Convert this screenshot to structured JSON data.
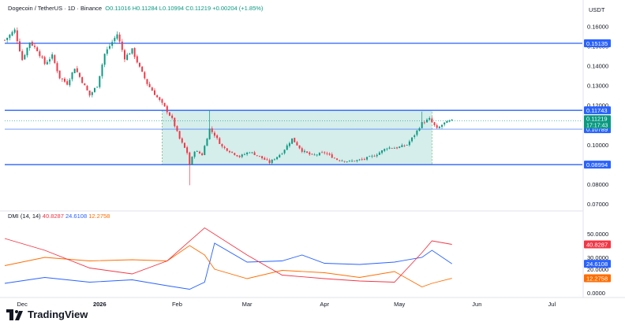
{
  "header": {
    "symbol": "Dogecoin / TetherUS · 1D · Binance",
    "ohlc": "O0.11016  H0.11284  L0.10994  C0.11219  +0.00204 (+1.85%)"
  },
  "currency": "USDT",
  "indicator": {
    "name": "DMI (14, 14)",
    "v1": "40.8287",
    "v2": "24.6108",
    "v3": "12.2758"
  },
  "brand": "TradingView",
  "colors": {
    "up": "#089981",
    "down": "#f23645",
    "level": "#2962ff",
    "range_fill": "#b2dfdb",
    "dmi_adx": "#f23645",
    "dmi_plus": "#2962ff",
    "dmi_minus": "#ff6d00",
    "price_tag": "#089981"
  },
  "chart_data": [
    {
      "type": "candlestick",
      "title": "Dogecoin / TetherUS · 1D · Binance",
      "y_ticks": [
        "0.16000",
        "0.15000",
        "0.14000",
        "0.13000",
        "0.12000",
        "0.11000",
        "0.10000",
        "0.09000",
        "0.08000",
        "0.07000"
      ],
      "ylim": [
        0.0665,
        0.1665
      ],
      "x_ticks": [
        "Dec",
        "2026",
        "Feb",
        "Mar",
        "Apr",
        "May",
        "Jun",
        "Jul"
      ],
      "levels": [
        {
          "price": 0.15135,
          "label": "0.15135"
        },
        {
          "price": 0.11743,
          "label": "0.11743"
        },
        {
          "price": 0.10789,
          "label": "0.10789"
        },
        {
          "price": 0.08994,
          "label": "0.08994"
        }
      ],
      "current_price": {
        "price": 0.11219,
        "label": "0.11219",
        "countdown": "17:17:43"
      },
      "range_box": {
        "from": "2026-01-26",
        "to": "2026-05-14",
        "top": 0.11743,
        "bottom": 0.08994
      },
      "series_anchors": [
        [
          "2025-11-24",
          0.153
        ],
        [
          "2025-11-28",
          0.158
        ],
        [
          "2025-12-01",
          0.143
        ],
        [
          "2025-12-04",
          0.152
        ],
        [
          "2025-12-07",
          0.148
        ],
        [
          "2025-12-10",
          0.141
        ],
        [
          "2025-12-13",
          0.145
        ],
        [
          "2025-12-16",
          0.134
        ],
        [
          "2025-12-19",
          0.131
        ],
        [
          "2025-12-22",
          0.139
        ],
        [
          "2025-12-25",
          0.132
        ],
        [
          "2025-12-28",
          0.125
        ],
        [
          "2025-12-31",
          0.13
        ],
        [
          "2026-01-03",
          0.146
        ],
        [
          "2026-01-06",
          0.152
        ],
        [
          "2026-01-08",
          0.156
        ],
        [
          "2026-01-11",
          0.144
        ],
        [
          "2026-01-14",
          0.148
        ],
        [
          "2026-01-17",
          0.139
        ],
        [
          "2026-01-20",
          0.131
        ],
        [
          "2026-01-24",
          0.124
        ],
        [
          "2026-01-27",
          0.119
        ],
        [
          "2026-01-30",
          0.113
        ],
        [
          "2026-02-02",
          0.103
        ],
        [
          "2026-02-05",
          0.096
        ],
        [
          "2026-02-06",
          0.09
        ],
        [
          "2026-02-08",
          0.097
        ],
        [
          "2026-02-11",
          0.095
        ],
        [
          "2026-02-14",
          0.108
        ],
        [
          "2026-02-16",
          0.105
        ],
        [
          "2026-02-19",
          0.099
        ],
        [
          "2026-02-23",
          0.096
        ],
        [
          "2026-02-26",
          0.094
        ],
        [
          "2026-03-02",
          0.0965
        ],
        [
          "2026-03-06",
          0.094
        ],
        [
          "2026-03-10",
          0.091
        ],
        [
          "2026-03-15",
          0.096
        ],
        [
          "2026-03-19",
          0.103
        ],
        [
          "2026-03-23",
          0.097
        ],
        [
          "2026-03-27",
          0.0945
        ],
        [
          "2026-04-01",
          0.096
        ],
        [
          "2026-04-06",
          0.0925
        ],
        [
          "2026-04-11",
          0.0915
        ],
        [
          "2026-04-16",
          0.0925
        ],
        [
          "2026-04-21",
          0.0945
        ],
        [
          "2026-04-26",
          0.0985
        ],
        [
          "2026-04-30",
          0.0985
        ],
        [
          "2026-05-04",
          0.1
        ],
        [
          "2026-05-07",
          0.105
        ],
        [
          "2026-05-10",
          0.111
        ],
        [
          "2026-05-13",
          0.113
        ],
        [
          "2026-05-16",
          0.108
        ],
        [
          "2026-05-19",
          0.111
        ],
        [
          "2026-05-22",
          0.1122
        ]
      ]
    },
    {
      "type": "line",
      "title": "DMI (14, 14)",
      "y_ticks": [
        "50.0000",
        "30.0000",
        "20.0000",
        "0.0000"
      ],
      "ylim": [
        0,
        60
      ],
      "series": [
        {
          "name": "40.8287",
          "color": "#f23645",
          "points": [
            [
              "2025-11-24",
              46
            ],
            [
              "2025-12-10",
              36
            ],
            [
              "2025-12-28",
              21
            ],
            [
              "2026-01-14",
              16
            ],
            [
              "2026-01-28",
              27
            ],
            [
              "2026-02-12",
              55
            ],
            [
              "2026-03-01",
              32
            ],
            [
              "2026-03-15",
              15
            ],
            [
              "2026-04-01",
              12
            ],
            [
              "2026-04-15",
              10
            ],
            [
              "2026-04-29",
              9
            ],
            [
              "2026-05-10",
              34
            ],
            [
              "2026-05-14",
              44
            ],
            [
              "2026-05-22",
              41
            ]
          ]
        },
        {
          "name": "24.6108",
          "color": "#2962ff",
          "points": [
            [
              "2025-11-24",
              8
            ],
            [
              "2025-12-10",
              13
            ],
            [
              "2025-12-28",
              9
            ],
            [
              "2026-01-14",
              11
            ],
            [
              "2026-01-28",
              6
            ],
            [
              "2026-02-06",
              3
            ],
            [
              "2026-02-12",
              9
            ],
            [
              "2026-02-16",
              42
            ],
            [
              "2026-03-01",
              26
            ],
            [
              "2026-03-15",
              27
            ],
            [
              "2026-03-23",
              32
            ],
            [
              "2026-04-01",
              25
            ],
            [
              "2026-04-15",
              24
            ],
            [
              "2026-04-29",
              26
            ],
            [
              "2026-05-10",
              30
            ],
            [
              "2026-05-14",
              36
            ],
            [
              "2026-05-22",
              24.6
            ]
          ]
        },
        {
          "name": "12.2758",
          "color": "#ff6d00",
          "points": [
            [
              "2025-11-24",
              23
            ],
            [
              "2025-12-10",
              30
            ],
            [
              "2025-12-28",
              27
            ],
            [
              "2026-01-14",
              28
            ],
            [
              "2026-01-28",
              27
            ],
            [
              "2026-02-06",
              40
            ],
            [
              "2026-02-12",
              32
            ],
            [
              "2026-02-16",
              20
            ],
            [
              "2026-03-01",
              12
            ],
            [
              "2026-03-15",
              19
            ],
            [
              "2026-04-01",
              17
            ],
            [
              "2026-04-15",
              13
            ],
            [
              "2026-04-29",
              18
            ],
            [
              "2026-05-10",
              5
            ],
            [
              "2026-05-14",
              8
            ],
            [
              "2026-05-22",
              12.3
            ]
          ]
        }
      ]
    }
  ]
}
